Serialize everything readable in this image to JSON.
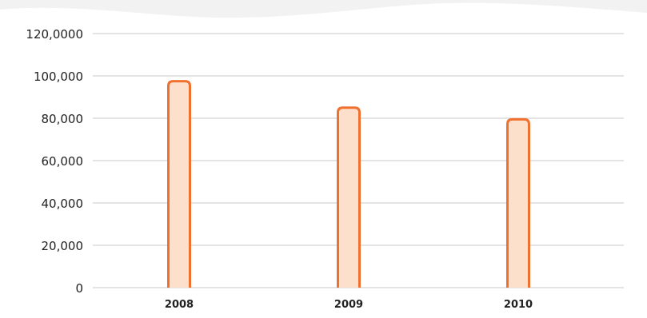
{
  "colors": {
    "page_background": "#f2f2f2",
    "card_background": "#ffffff",
    "gridline": "#c9c9c9",
    "bar_fill": "#fde0cc",
    "bar_stroke": "#f07030",
    "text": "#222222"
  },
  "chart_data": {
    "type": "bar",
    "title": "",
    "xlabel": "",
    "ylabel": "",
    "categories": [
      "2008",
      "2009",
      "2010"
    ],
    "values": [
      97500,
      85000,
      79500
    ],
    "ylim": [
      0,
      120000
    ],
    "y_tick_labels": [
      "0",
      "20,000",
      "40,000",
      "60,000",
      "80,000",
      "100,000",
      "120,0000"
    ],
    "grid": true,
    "legend": "none"
  }
}
